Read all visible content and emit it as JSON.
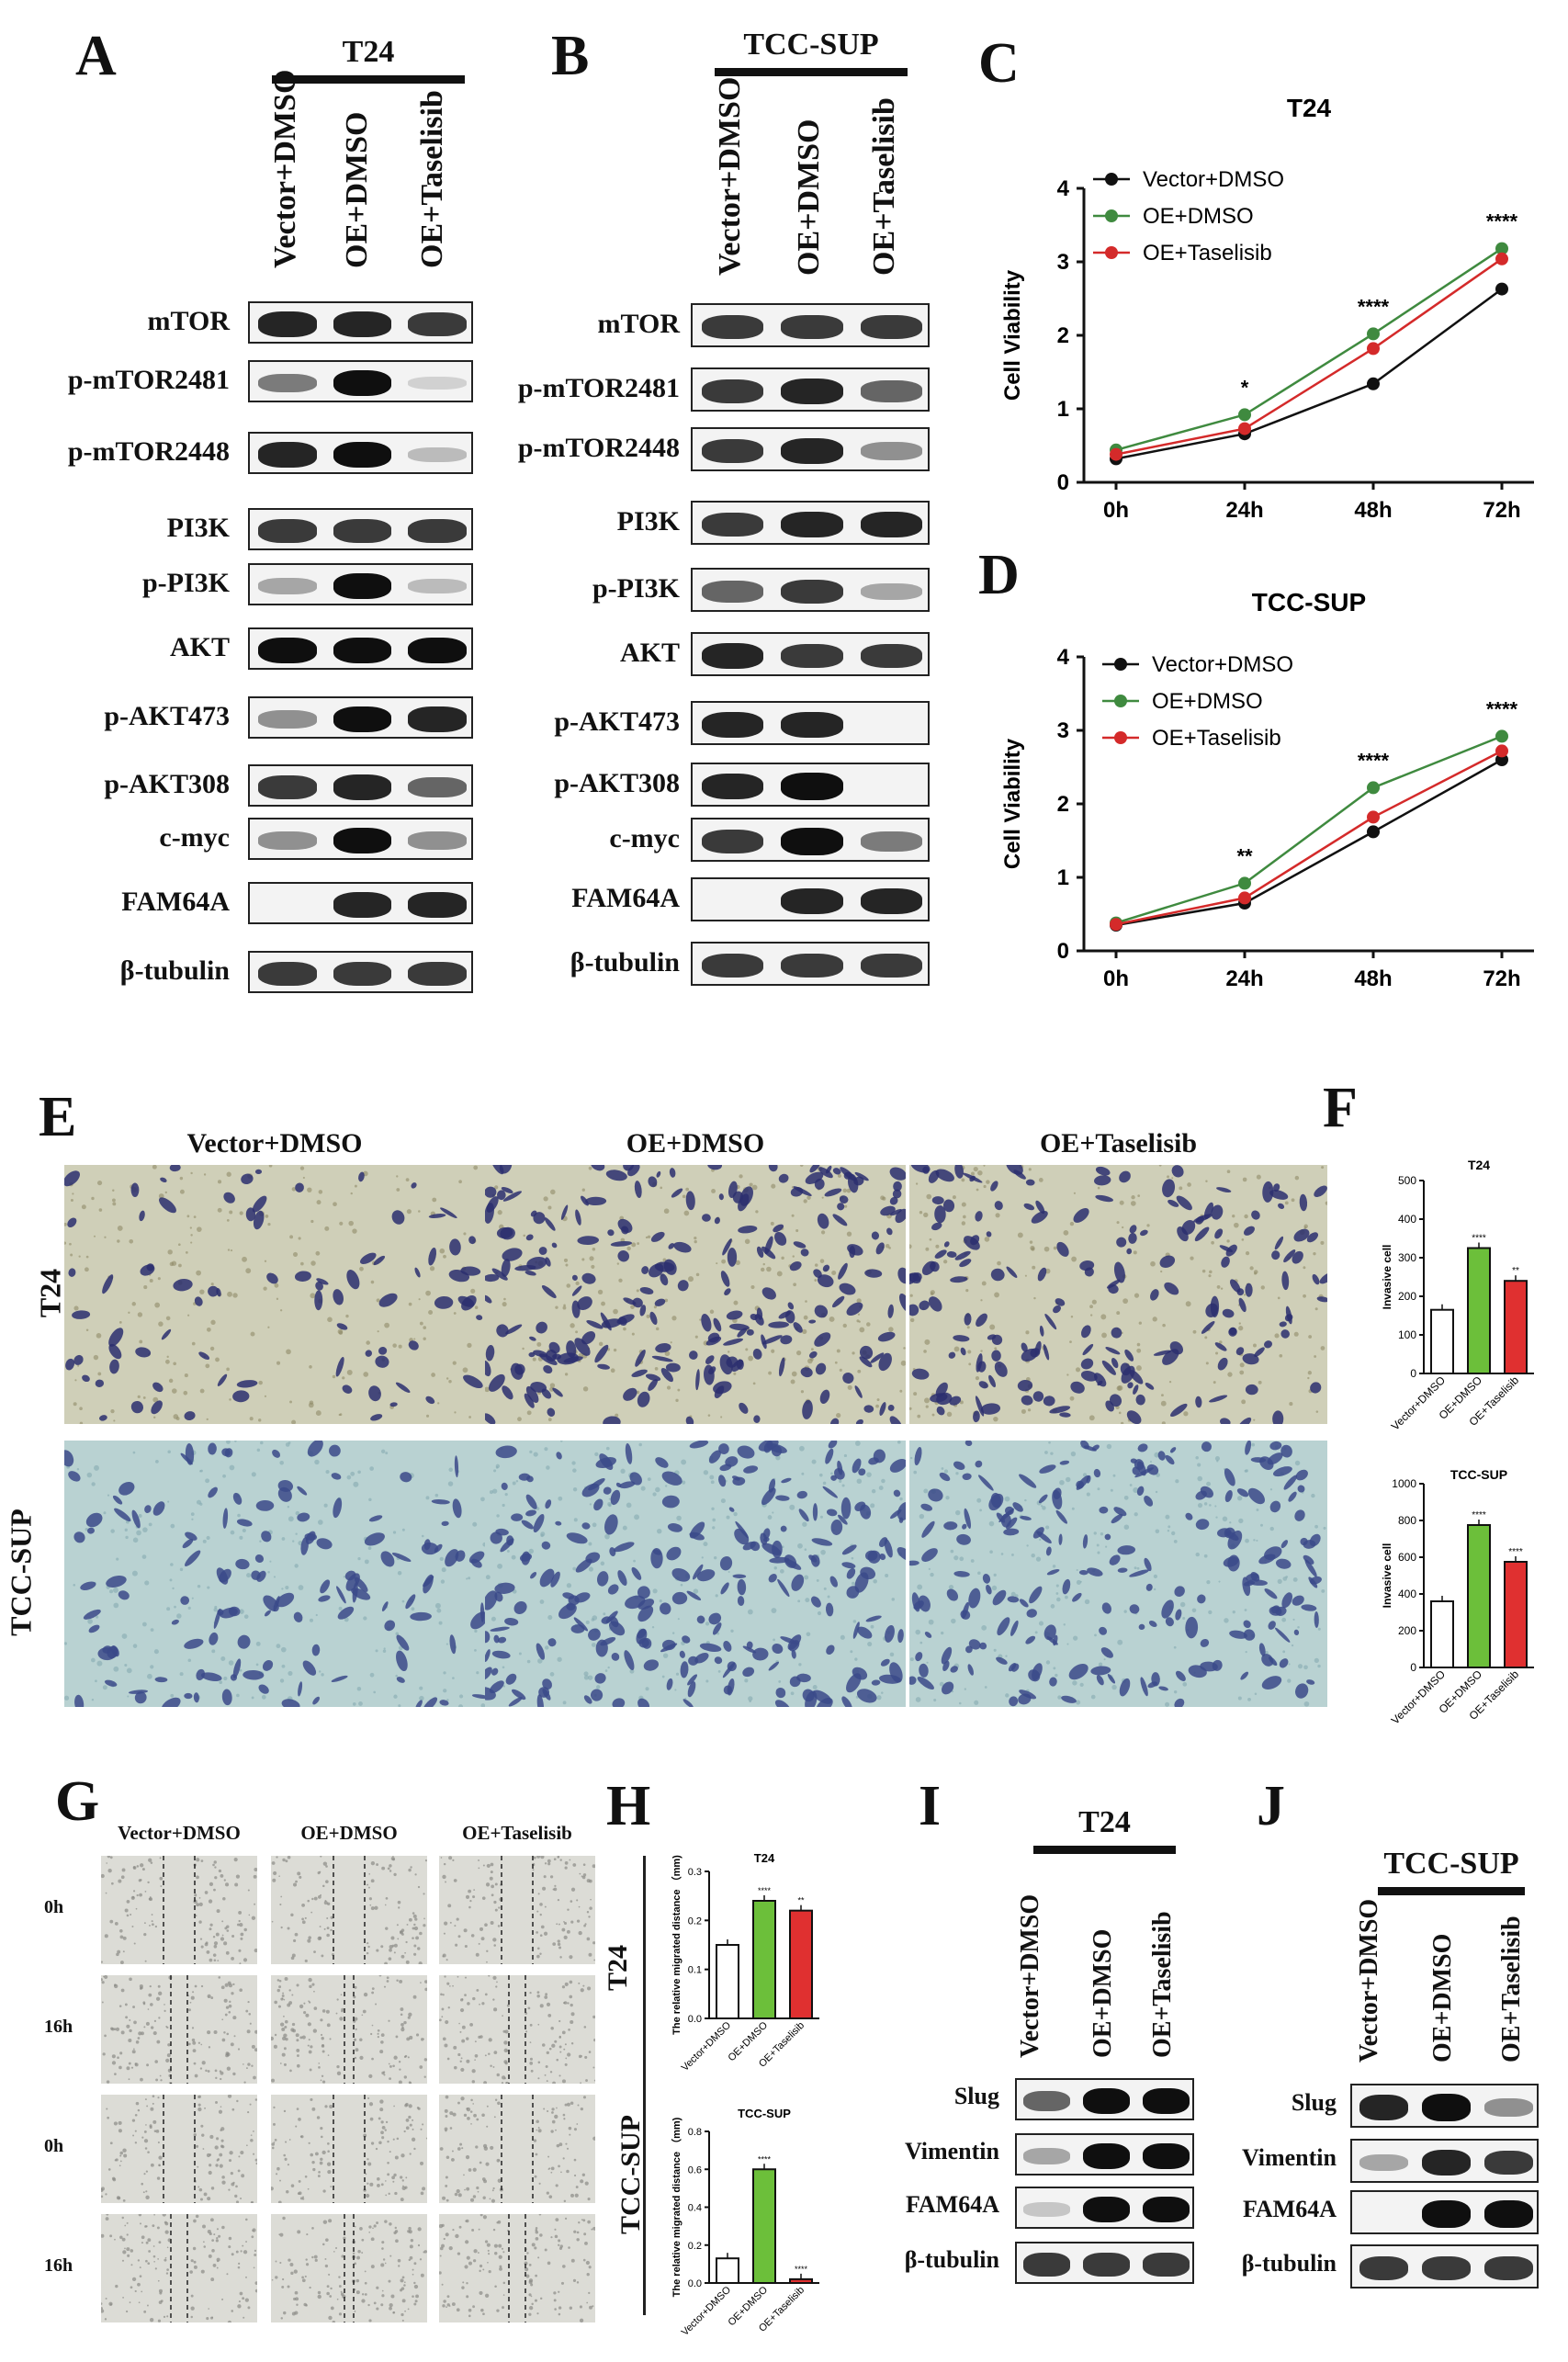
{
  "panels": {
    "A": "A",
    "B": "B",
    "C": "C",
    "D": "D",
    "E": "E",
    "F": "F",
    "G": "G",
    "H": "H",
    "I": "I",
    "J": "J"
  },
  "wb_A": {
    "cell": "T24",
    "lanes": [
      "Vector+DMSO",
      "OE+DMSO",
      "OE+Taselisib"
    ],
    "rows": [
      "mTOR",
      "p-mTOR2481",
      "p-mTOR2448",
      "PI3K",
      "p-PI3K",
      "AKT",
      "p-AKT473",
      "p-AKT308",
      "c-myc",
      "FAM64A",
      "β-tubulin"
    ],
    "intensity": [
      [
        0.9,
        0.9,
        0.8
      ],
      [
        0.5,
        1.0,
        0.1
      ],
      [
        0.9,
        1.0,
        0.2
      ],
      [
        0.8,
        0.8,
        0.8
      ],
      [
        0.3,
        1.0,
        0.2
      ],
      [
        1.0,
        1.0,
        1.0
      ],
      [
        0.4,
        1.0,
        0.9
      ],
      [
        0.8,
        0.9,
        0.6
      ],
      [
        0.4,
        1.0,
        0.4
      ],
      [
        0.0,
        0.9,
        0.9
      ],
      [
        0.8,
        0.8,
        0.8
      ]
    ]
  },
  "wb_B": {
    "cell": "TCC-SUP",
    "lanes": [
      "Vector+DMSO",
      "OE+DMSO",
      "OE+Taselisib"
    ],
    "rows": [
      "mTOR",
      "p-mTOR2481",
      "p-mTOR2448",
      "PI3K",
      "p-PI3K",
      "AKT",
      "p-AKT473",
      "p-AKT308",
      "c-myc",
      "FAM64A",
      "β-tubulin"
    ],
    "intensity": [
      [
        0.8,
        0.8,
        0.8
      ],
      [
        0.8,
        0.9,
        0.6
      ],
      [
        0.8,
        0.9,
        0.4
      ],
      [
        0.8,
        0.9,
        0.9
      ],
      [
        0.6,
        0.8,
        0.3
      ],
      [
        0.9,
        0.8,
        0.8
      ],
      [
        0.9,
        0.9,
        0.0
      ],
      [
        0.9,
        1.0,
        0.0
      ],
      [
        0.8,
        1.0,
        0.5
      ],
      [
        0.0,
        0.9,
        0.9
      ],
      [
        0.8,
        0.8,
        0.8
      ]
    ]
  },
  "chart_C": {
    "type": "line",
    "title": "T24",
    "ylabel": "Cell Viability",
    "categories": [
      "0h",
      "24h",
      "48h",
      "72h"
    ],
    "ylim": [
      0,
      4
    ],
    "yticks": [
      "0",
      "1",
      "2",
      "3",
      "4"
    ],
    "series": [
      {
        "name": "Vector+DMSO",
        "color": "#111111",
        "values": [
          0.32,
          0.66,
          1.34,
          2.63
        ]
      },
      {
        "name": "OE+DMSO",
        "color": "#3f8a3f",
        "values": [
          0.44,
          0.92,
          2.02,
          3.18
        ]
      },
      {
        "name": "OE+Taselisib",
        "color": "#d42a2a",
        "values": [
          0.38,
          0.73,
          1.82,
          3.04
        ]
      }
    ],
    "sig": [
      "",
      "*",
      "****",
      "****"
    ]
  },
  "chart_D": {
    "type": "line",
    "title": "TCC-SUP",
    "ylabel": "Cell Viability",
    "categories": [
      "0h",
      "24h",
      "48h",
      "72h"
    ],
    "ylim": [
      0,
      4
    ],
    "yticks": [
      "0",
      "1",
      "2",
      "3",
      "4"
    ],
    "series": [
      {
        "name": "Vector+DMSO",
        "color": "#111111",
        "values": [
          0.35,
          0.65,
          1.62,
          2.6
        ]
      },
      {
        "name": "OE+DMSO",
        "color": "#3f8a3f",
        "values": [
          0.38,
          0.92,
          2.22,
          2.92
        ]
      },
      {
        "name": "OE+Taselisib",
        "color": "#d42a2a",
        "values": [
          0.36,
          0.72,
          1.82,
          2.72
        ]
      }
    ],
    "sig": [
      "",
      "**",
      "****",
      "****"
    ]
  },
  "panel_E": {
    "columns": [
      "Vector+DMSO",
      "OE+DMSO",
      "OE+Taselisib"
    ],
    "rows": [
      "T24",
      "TCC-SUP"
    ],
    "density": [
      [
        0.15,
        0.75,
        0.55
      ],
      [
        0.35,
        0.8,
        0.65
      ]
    ]
  },
  "chart_F1": {
    "type": "bar",
    "title": "T24",
    "ylabel": "Invasive cell",
    "categories": [
      "Vector+DMSO",
      "OE+DMSO",
      "OE+Taselisib"
    ],
    "values": [
      165,
      325,
      240
    ],
    "colors": [
      "#ffffff",
      "#6cbf3a",
      "#e03030"
    ],
    "ylim": [
      0,
      500
    ],
    "yticks": [
      "0",
      "100",
      "200",
      "300",
      "400",
      "500"
    ],
    "sig": [
      "",
      "****",
      "**"
    ]
  },
  "chart_F2": {
    "type": "bar",
    "title": "TCC-SUP",
    "ylabel": "Invasive cell",
    "categories": [
      "Vector+DMSO",
      "OE+DMSO",
      "OE+Taselisib"
    ],
    "values": [
      360,
      775,
      575
    ],
    "colors": [
      "#ffffff",
      "#6cbf3a",
      "#e03030"
    ],
    "ylim": [
      0,
      1000
    ],
    "yticks": [
      "0",
      "200",
      "400",
      "600",
      "800",
      "1000"
    ],
    "sig": [
      "",
      "****",
      "****"
    ]
  },
  "panel_G": {
    "columns": [
      "Vector+DMSO",
      "OE+DMSO",
      "OE+Taselisib"
    ],
    "rows": [
      "0h",
      "16h",
      "0h",
      "16h"
    ]
  },
  "panel_H_side": [
    "T24",
    "TCC-SUP"
  ],
  "chart_H1": {
    "type": "bar",
    "title": "T24",
    "ylabel": "The relative migrated distance （mm)",
    "categories": [
      "Vector+DMSO",
      "OE+DMSO",
      "OE+Taselisib"
    ],
    "values": [
      0.15,
      0.24,
      0.22
    ],
    "colors": [
      "#ffffff",
      "#6cbf3a",
      "#e03030"
    ],
    "ylim": [
      0,
      0.3
    ],
    "yticks": [
      "0.0",
      "0.1",
      "0.2",
      "0.3"
    ],
    "sig": [
      "",
      "****",
      "**"
    ]
  },
  "chart_H2": {
    "type": "bar",
    "title": "TCC-SUP",
    "ylabel": "The relative migrated distance （mm)",
    "categories": [
      "Vector+DMSO",
      "OE+DMSO",
      "OE+Taselisib"
    ],
    "values": [
      0.13,
      0.6,
      0.02
    ],
    "colors": [
      "#ffffff",
      "#6cbf3a",
      "#e03030"
    ],
    "ylim": [
      0,
      0.8
    ],
    "yticks": [
      "0.0",
      "0.2",
      "0.4",
      "0.6",
      "0.8"
    ],
    "sig": [
      "",
      "****",
      "****"
    ]
  },
  "wb_I": {
    "cell": "T24",
    "lanes": [
      "Vector+DMSO",
      "OE+DMSO",
      "OE+Taselisib"
    ],
    "rows": [
      "Slug",
      "Vimentin",
      "FAM64A",
      "β-tubulin"
    ],
    "intensity": [
      [
        0.6,
        1.0,
        1.0
      ],
      [
        0.3,
        1.0,
        1.0
      ],
      [
        0.15,
        1.0,
        1.0
      ],
      [
        0.8,
        0.8,
        0.8
      ]
    ]
  },
  "wb_J": {
    "cell": "TCC-SUP",
    "lanes": [
      "Vector+DMSO",
      "OE+DMSO",
      "OE+Taselisib"
    ],
    "rows": [
      "Slug",
      "Vimentin",
      "FAM64A",
      "β-tubulin"
    ],
    "intensity": [
      [
        0.9,
        1.0,
        0.4
      ],
      [
        0.3,
        0.9,
        0.8
      ],
      [
        0.0,
        1.0,
        1.0
      ],
      [
        0.8,
        0.8,
        0.8
      ]
    ]
  }
}
